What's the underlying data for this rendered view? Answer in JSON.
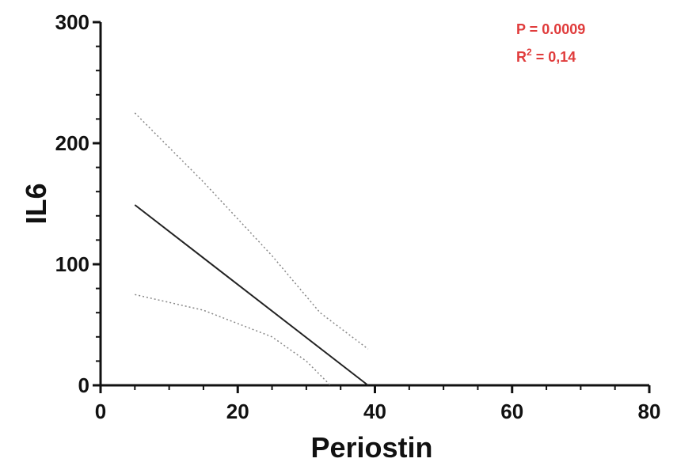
{
  "chart_data": {
    "type": "line",
    "xlabel": "Periostin",
    "ylabel": "IL6",
    "xlim": [
      0,
      80
    ],
    "ylim": [
      0,
      300
    ],
    "x_ticks": [
      "0",
      "20",
      "40",
      "60",
      "80"
    ],
    "y_ticks": [
      "0",
      "100",
      "200",
      "300"
    ],
    "grid": false,
    "series": [
      {
        "style": "solid",
        "color": "#222222",
        "points": [
          [
            5,
            149
          ],
          [
            39,
            0
          ]
        ]
      },
      {
        "style": "dotted",
        "color": "#888888",
        "points": [
          [
            5,
            225
          ],
          [
            15,
            168
          ],
          [
            25,
            107
          ],
          [
            32,
            60
          ],
          [
            39,
            30
          ]
        ]
      },
      {
        "style": "dotted",
        "color": "#888888",
        "points": [
          [
            5,
            75
          ],
          [
            15,
            62
          ],
          [
            25,
            40
          ],
          [
            30,
            20
          ],
          [
            33.5,
            0
          ]
        ]
      }
    ],
    "annotations": {
      "p_value": "P = 0.0009",
      "r2_base": "R",
      "r2_exp": "2",
      "r2_value": " = 0,14",
      "color": "#e03c3c"
    }
  }
}
